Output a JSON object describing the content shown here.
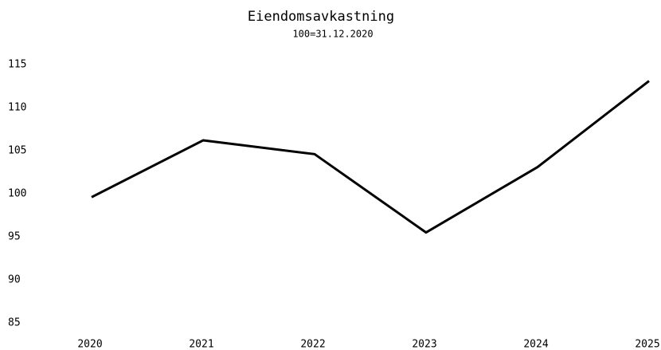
{
  "chart_data": {
    "type": "line",
    "title": "Eiendomsavkastning",
    "subtitle": "100=31.12.2020",
    "categories": [
      "2020",
      "2021",
      "2022",
      "2023",
      "2024",
      "2025"
    ],
    "series": [
      {
        "name": "Eiendomsavkastning",
        "color": "#000000",
        "values": [
          99.6,
          106.2,
          104.6,
          95.5,
          103.1,
          113.1
        ]
      }
    ],
    "ylim": [
      85,
      115
    ],
    "yticks": [
      85,
      90,
      95,
      100,
      105,
      110,
      115
    ],
    "grid": false
  }
}
